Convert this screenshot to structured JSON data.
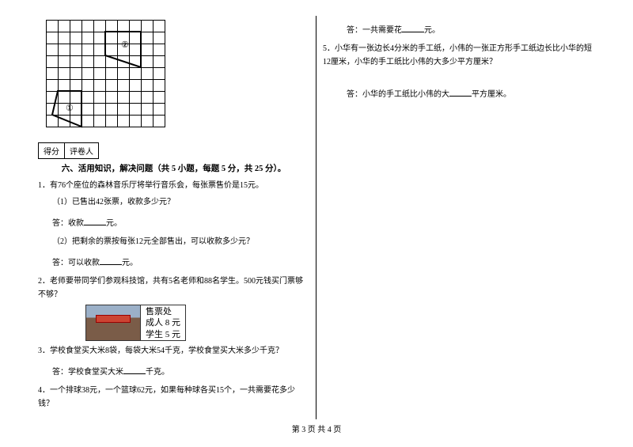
{
  "grid": {
    "cols": 10,
    "rows": 9,
    "cell": 15,
    "stroke": "#000000",
    "fill": "#ffffff",
    "shape1": {
      "points": [
        [
          0,
          6
        ],
        [
          3,
          6
        ],
        [
          3,
          9
        ],
        [
          0,
          9
        ]
      ],
      "triangle": [
        [
          0,
          6
        ],
        [
          3,
          6
        ],
        [
          0,
          9
        ]
      ],
      "label": "①"
    },
    "shape2": {
      "points": [
        [
          5,
          1
        ],
        [
          8,
          1
        ],
        [
          8,
          4
        ],
        [
          5,
          4
        ]
      ],
      "poly": [
        [
          5,
          1
        ],
        [
          8,
          1
        ],
        [
          8,
          4
        ],
        [
          5,
          3
        ]
      ],
      "label": "②"
    }
  },
  "scorebox": {
    "left": "得分",
    "right": "评卷人"
  },
  "section": "六、活用知识，解决问题（共 5 小题，每题 5 分，共 25 分）。",
  "q1": {
    "stem": "1．有76个座位的森林音乐厅将举行音乐会，每张票售价是15元。",
    "p1": "（1）已售出42张票，收款多少元？",
    "a1": "答：收款____元。",
    "p2": "（2）把剩余的票按每张12元全部售出，可以收款多少元？",
    "a2": "答：可以收款____元。"
  },
  "q2": {
    "stem": "2．老师要带同学们参观科技馆，共有5名老师和88名学生。500元钱买门票够不够？",
    "ticket": {
      "title": "售票处",
      "line1": "成人 8 元",
      "line2": "学生 5 元"
    }
  },
  "q3": {
    "stem": "3．学校食堂买大米8袋，每袋大米54千克，学校食堂买大米多少千克？",
    "ans": "答：学校食堂买大米____千克。"
  },
  "q4": {
    "stem": "4．一个排球38元，一个篮球62元，如果每种球各买15个，一共需要花多少钱？"
  },
  "q4ans": "答：一共需要花____元。",
  "q5": {
    "stem": "5．小华有一张边长4分米的手工纸，小伟的一张正方形手工纸边长比小华的短12厘米，小华的手工纸比小伟的大多少平方厘米？",
    "ans": "答：小华的手工纸比小伟的大____平方厘米。"
  },
  "footer": "第 3 页 共 4 页"
}
